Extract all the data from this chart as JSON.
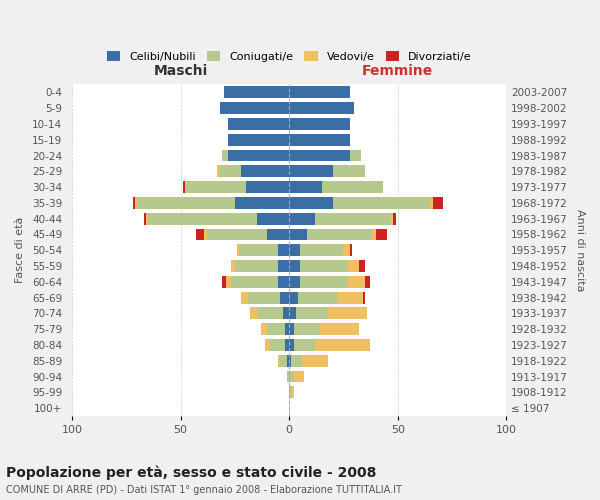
{
  "age_groups": [
    "100+",
    "95-99",
    "90-94",
    "85-89",
    "80-84",
    "75-79",
    "70-74",
    "65-69",
    "60-64",
    "55-59",
    "50-54",
    "45-49",
    "40-44",
    "35-39",
    "30-34",
    "25-29",
    "20-24",
    "15-19",
    "10-14",
    "5-9",
    "0-4"
  ],
  "birth_years": [
    "≤ 1907",
    "1908-1912",
    "1913-1917",
    "1918-1922",
    "1923-1927",
    "1928-1932",
    "1933-1937",
    "1938-1942",
    "1943-1947",
    "1948-1952",
    "1953-1957",
    "1958-1962",
    "1963-1967",
    "1968-1972",
    "1973-1977",
    "1978-1982",
    "1983-1987",
    "1988-1992",
    "1993-1997",
    "1998-2002",
    "2003-2007"
  ],
  "maschi": {
    "celibi": [
      0,
      0,
      0,
      1,
      2,
      2,
      3,
      4,
      5,
      5,
      5,
      10,
      15,
      25,
      20,
      22,
      28,
      28,
      28,
      32,
      30
    ],
    "coniugati": [
      0,
      0,
      1,
      3,
      7,
      8,
      12,
      15,
      22,
      20,
      18,
      28,
      50,
      45,
      28,
      10,
      3,
      0,
      0,
      0,
      0
    ],
    "vedovi": [
      0,
      0,
      0,
      1,
      2,
      3,
      3,
      3,
      2,
      2,
      1,
      1,
      1,
      1,
      0,
      1,
      0,
      0,
      0,
      0,
      0
    ],
    "divorziati": [
      0,
      0,
      0,
      0,
      0,
      0,
      0,
      0,
      2,
      0,
      0,
      4,
      1,
      1,
      1,
      0,
      0,
      0,
      0,
      0,
      0
    ]
  },
  "femmine": {
    "nubili": [
      0,
      0,
      0,
      1,
      2,
      2,
      3,
      4,
      5,
      5,
      5,
      8,
      12,
      20,
      15,
      20,
      28,
      28,
      28,
      30,
      28
    ],
    "coniugate": [
      0,
      1,
      2,
      5,
      10,
      12,
      15,
      18,
      22,
      22,
      20,
      30,
      35,
      45,
      28,
      15,
      5,
      0,
      0,
      0,
      0
    ],
    "vedove": [
      0,
      1,
      5,
      12,
      25,
      18,
      18,
      12,
      8,
      5,
      3,
      2,
      1,
      1,
      0,
      0,
      0,
      0,
      0,
      0,
      0
    ],
    "divorziate": [
      0,
      0,
      0,
      0,
      0,
      0,
      0,
      1,
      2,
      3,
      1,
      5,
      1,
      5,
      0,
      0,
      0,
      0,
      0,
      0,
      0
    ]
  },
  "colors": {
    "celibi_nubili": "#3a6ea5",
    "coniugati": "#b5c98e",
    "vedovi": "#f0c060",
    "divorziati": "#cc2222"
  },
  "xlim": 100,
  "title": "Popolazione per età, sesso e stato civile - 2008",
  "subtitle": "COMUNE DI ARRE (PD) - Dati ISTAT 1° gennaio 2008 - Elaborazione TUTTITALIA.IT",
  "ylabel_left": "Fasce di età",
  "ylabel_right": "Anni di nascita",
  "xlabel_left": "Maschi",
  "xlabel_right": "Femmine",
  "bg_color": "#f0f0f0",
  "plot_bg": "#ffffff",
  "grid_color": "#cccccc"
}
